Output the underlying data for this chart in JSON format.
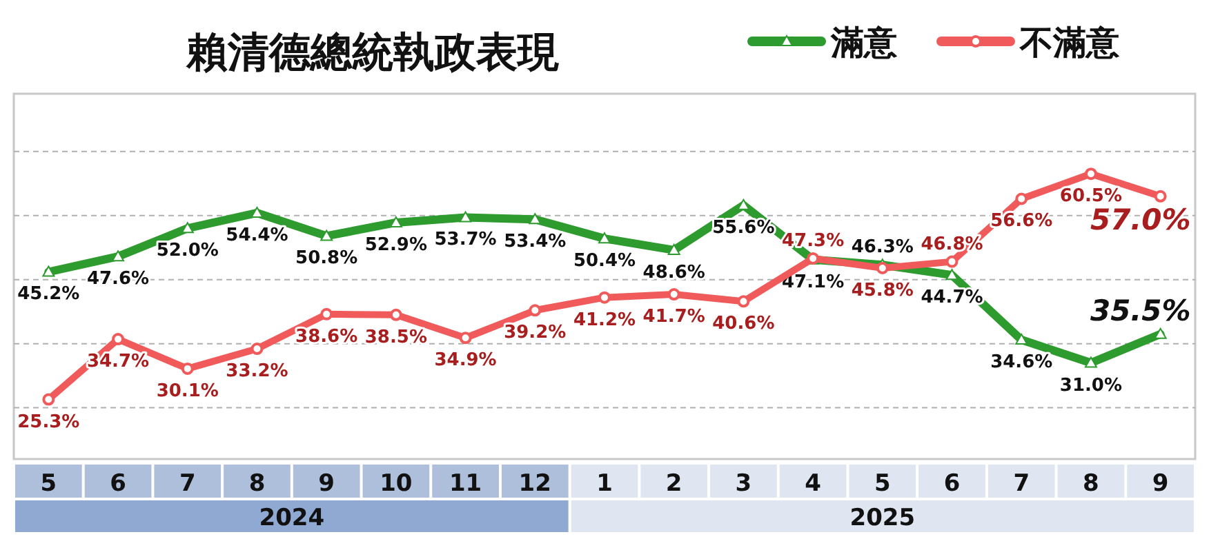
{
  "chart_data": {
    "type": "line",
    "title": "賴清德總統執政表現",
    "categories": [
      "5",
      "6",
      "7",
      "8",
      "9",
      "10",
      "11",
      "12",
      "1",
      "2",
      "3",
      "4",
      "5",
      "6",
      "7",
      "8",
      "9"
    ],
    "series": [
      {
        "name": "滿意",
        "color": "#2e9b2e",
        "marker": "triangle",
        "values": [
          45.2,
          47.6,
          52.0,
          54.4,
          50.8,
          52.9,
          53.7,
          53.4,
          50.4,
          48.6,
          55.6,
          47.1,
          46.3,
          44.7,
          34.6,
          31.0,
          35.5
        ],
        "value_labels": [
          "45.2%",
          "47.6%",
          "52.0%",
          "54.4%",
          "50.8%",
          "52.9%",
          "53.7%",
          "53.4%",
          "50.4%",
          "48.6%",
          "55.6%",
          "47.1%",
          "46.3%",
          "44.7%",
          "34.6%",
          "31.0%",
          "35.5%"
        ]
      },
      {
        "name": "不滿意",
        "color": "#f05a5a",
        "marker": "circle",
        "values": [
          25.3,
          34.7,
          30.1,
          33.2,
          38.6,
          38.5,
          34.9,
          39.2,
          41.2,
          41.7,
          40.6,
          47.3,
          45.8,
          46.8,
          56.6,
          60.5,
          57.0
        ],
        "value_labels": [
          "25.3%",
          "34.7%",
          "30.1%",
          "33.2%",
          "38.6%",
          "38.5%",
          "34.9%",
          "39.2%",
          "41.2%",
          "41.7%",
          "40.6%",
          "47.3%",
          "45.8%",
          "46.8%",
          "56.6%",
          "60.5%",
          "57.0%"
        ]
      }
    ],
    "ylim": [
      16,
      73
    ],
    "yticks": [
      {
        "value": 24,
        "label": null
      },
      {
        "value": 34,
        "label": null
      },
      {
        "value": 44,
        "label": null
      },
      {
        "value": 54,
        "label": null
      },
      {
        "value": 64,
        "label": null
      }
    ],
    "grid": "y",
    "tick_labels": "x",
    "legend": "top right",
    "line_style": "solid",
    "annotations": [
      "2024",
      "2025"
    ]
  }
}
